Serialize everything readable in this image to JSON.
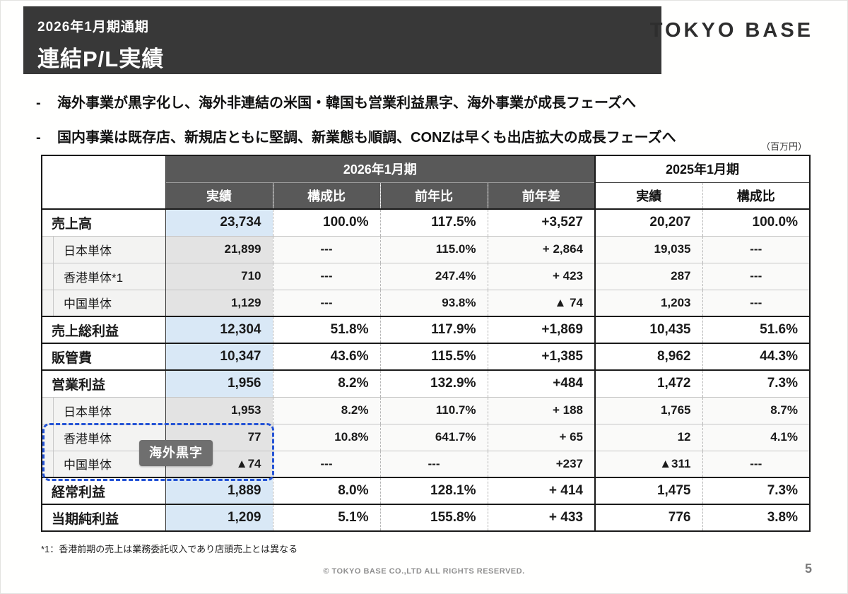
{
  "header": {
    "period": "2026年1月期通期",
    "title": "連結P/L実績",
    "logo": "TOKYO BASE"
  },
  "bullet_marker": "-",
  "bullets": [
    "海外事業が黒字化し、海外非連結の米国・韓国も営業利益黒字、海外事業が成長フェーズへ",
    "国内事業は既存店、新規店ともに堅調、新業態も順調、CONZは早くも出店拡大の成長フェーズへ"
  ],
  "unit_label": "（百万円）",
  "table": {
    "group_headers": [
      "2026年1月期",
      "2025年1月期"
    ],
    "col_headers": [
      "実績",
      "構成比",
      "前年比",
      "前年差",
      "実績",
      "構成比"
    ],
    "rows": [
      {
        "label": "売上高",
        "type": "main",
        "values": [
          "23,734",
          "100.0%",
          "117.5%",
          "+3,527",
          "20,207",
          "100.0%"
        ]
      },
      {
        "label": "日本単体",
        "type": "sub",
        "values": [
          "21,899",
          "---",
          "115.0%",
          "+ 2,864",
          "19,035",
          "---"
        ]
      },
      {
        "label": "香港単体*1",
        "type": "sub",
        "values": [
          "710",
          "---",
          "247.4%",
          "+ 423",
          "287",
          "---"
        ]
      },
      {
        "label": "中国単体",
        "type": "sub",
        "values": [
          "1,129",
          "---",
          "93.8%",
          "▲ 74",
          "1,203",
          "---"
        ]
      },
      {
        "label": "売上総利益",
        "type": "main",
        "values": [
          "12,304",
          "51.8%",
          "117.9%",
          "+1,869",
          "10,435",
          "51.6%"
        ]
      },
      {
        "label": "販管費",
        "type": "main",
        "values": [
          "10,347",
          "43.6%",
          "115.5%",
          "+1,385",
          "8,962",
          "44.3%"
        ]
      },
      {
        "label": "営業利益",
        "type": "main",
        "values": [
          "1,956",
          "8.2%",
          "132.9%",
          "+484",
          "1,472",
          "7.3%"
        ]
      },
      {
        "label": "日本単体",
        "type": "sub",
        "values": [
          "1,953",
          "8.2%",
          "110.7%",
          "+ 188",
          "1,765",
          "8.7%"
        ]
      },
      {
        "label": "香港単体",
        "type": "sub",
        "values": [
          "77",
          "10.8%",
          "641.7%",
          "+ 65",
          "12",
          "4.1%"
        ]
      },
      {
        "label": "中国単体",
        "type": "sub",
        "values": [
          "▲74",
          "---",
          "---",
          "+237",
          "▲311",
          "---"
        ]
      },
      {
        "label": "経常利益",
        "type": "main",
        "values": [
          "1,889",
          "8.0%",
          "128.1%",
          "+ 414",
          "1,475",
          "7.3%"
        ]
      },
      {
        "label": "当期純利益",
        "type": "main",
        "values": [
          "1,209",
          "5.1%",
          "155.8%",
          "+ 433",
          "776",
          "3.8%"
        ]
      }
    ]
  },
  "annotation": {
    "badge": "海外黒字"
  },
  "footnote": "*1：香港前期の売上は業務委託収入であり店頭売上とは異なる",
  "footer": {
    "copyright": "© TOKYO BASE CO.,LTD  ALL RIGHTS RESERVED.",
    "page": "5"
  }
}
